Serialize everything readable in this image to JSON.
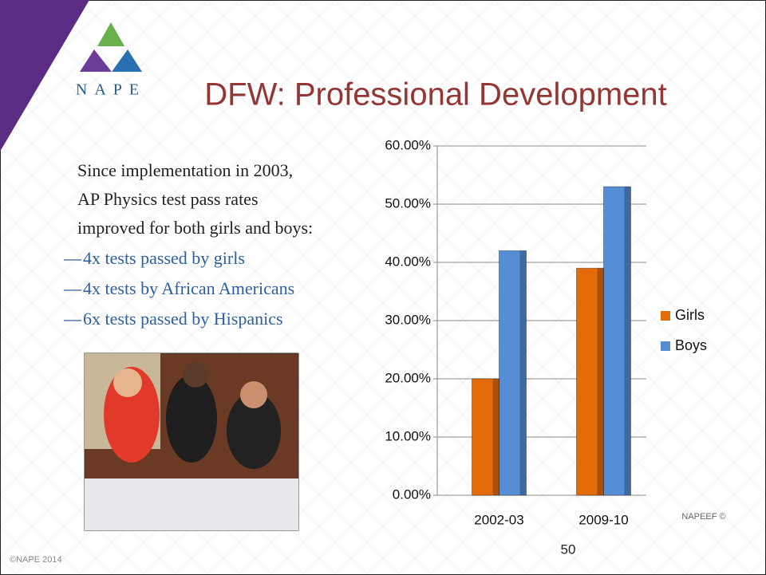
{
  "header": {
    "logo_text": "NAPE",
    "title": "DFW: Professional Development"
  },
  "body": {
    "intro": [
      "Since implementation in 2003,",
      "AP Physics test pass rates",
      "improved for both girls and boys:"
    ],
    "bullets": [
      "4x tests passed by girls",
      "4x tests by African Americans",
      "6x tests passed by Hispanics"
    ]
  },
  "footer": {
    "copyright": "©NAPE 2014",
    "credit": "NAPEEF ©",
    "page_number": "50"
  },
  "chart_data": {
    "type": "bar",
    "categories": [
      "2002-03",
      "2009-10"
    ],
    "series": [
      {
        "name": "Girls",
        "color": "#e36c09",
        "values": [
          20,
          39
        ]
      },
      {
        "name": "Boys",
        "color": "#558ed5",
        "values": [
          42,
          53
        ]
      }
    ],
    "ylim": [
      0,
      60
    ],
    "yticks": [
      {
        "value": 0,
        "label": "0.00%"
      },
      {
        "value": 10,
        "label": "10.00%"
      },
      {
        "value": 20,
        "label": "20.00%"
      },
      {
        "value": 30,
        "label": "30.00%"
      },
      {
        "value": 40,
        "label": "40.00%"
      },
      {
        "value": 50,
        "label": "50.00%"
      },
      {
        "value": 60,
        "label": "60.00%"
      }
    ],
    "grid": true,
    "legend": "right"
  }
}
